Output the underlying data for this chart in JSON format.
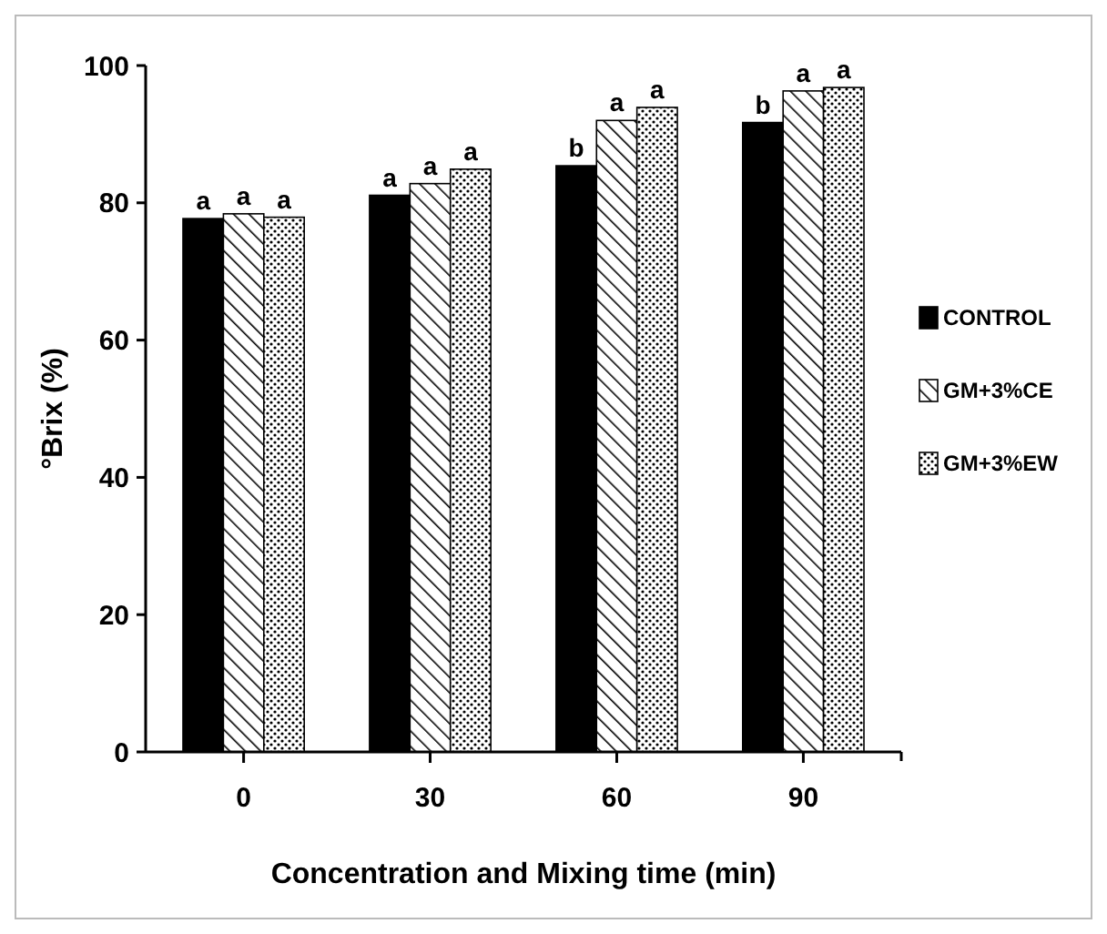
{
  "chart_data": {
    "type": "bar",
    "xlabel": "Concentration and Mixing time (min)",
    "ylabel": "°Brix (%)",
    "categories": [
      "0",
      "30",
      "60",
      "90"
    ],
    "series": [
      {
        "name": "CONTROL",
        "color": "#000000",
        "values": [
          77.7,
          81.1,
          85.4,
          91.7
        ]
      },
      {
        "name": "GM+3%CE",
        "color": "#000000",
        "values": [
          78.4,
          82.8,
          92.0,
          96.3
        ]
      },
      {
        "name": "GM+3%EW",
        "color": "#000000",
        "values": [
          77.9,
          84.9,
          93.9,
          96.8
        ]
      }
    ],
    "ylim": [
      0,
      100
    ],
    "yticks": [
      0,
      20,
      40,
      60,
      80,
      100
    ],
    "grid": false,
    "legend": "right",
    "annotations": [
      "a",
      "a",
      "a",
      "a",
      "a",
      "a",
      "b",
      "a",
      "a",
      "b",
      "a",
      "a"
    ]
  }
}
